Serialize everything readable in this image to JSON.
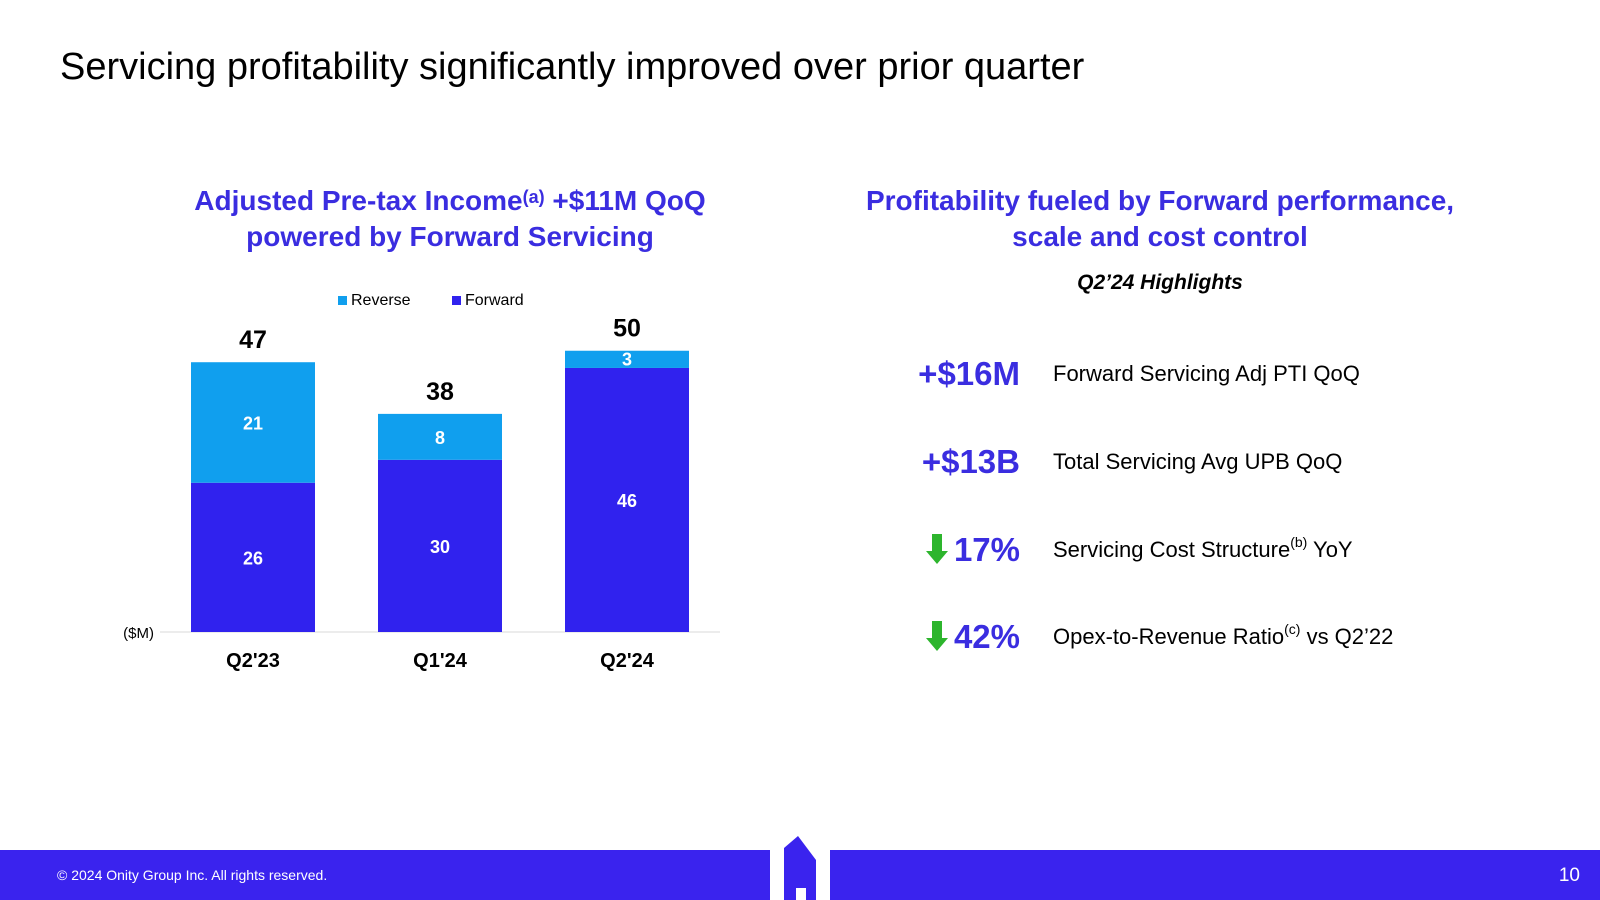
{
  "slide": {
    "title": "Servicing profitability significantly improved over prior quarter",
    "page_number": "10",
    "copyright": "© 2024 Onity Group Inc. All rights reserved."
  },
  "left_panel": {
    "title_line1_pre": "Adjusted Pre-tax Income",
    "title_sup": "(a)",
    "title_line1_post": " +$11M QoQ",
    "title_line2": "powered by Forward Servicing"
  },
  "right_panel": {
    "title_line1": "Profitability fueled by Forward performance,",
    "title_line2": "scale and cost control",
    "highlights_label": "Q2’24 Highlights",
    "metrics": [
      {
        "value": "+$16M",
        "desc": "Forward Servicing Adj PTI QoQ",
        "sup": "",
        "desc_post": "",
        "arrow": false
      },
      {
        "value": "+$13B",
        "desc": "Total Servicing Avg UPB QoQ",
        "sup": "",
        "desc_post": "",
        "arrow": false
      },
      {
        "value": "17%",
        "desc": "Servicing Cost Structure",
        "sup": "(b)",
        "desc_post": " YoY",
        "arrow": true
      },
      {
        "value": "42%",
        "desc": "Opex-to-Revenue Ratio",
        "sup": "(c)",
        "desc_post": " vs Q2’22",
        "arrow": true
      }
    ]
  },
  "colors": {
    "accent": "#3a2de0",
    "forward": "#3022ee",
    "reverse": "#109fee",
    "footer": "#3a23ee",
    "arrow": "#2db52d"
  },
  "chart_data": {
    "type": "bar",
    "stacked": true,
    "categories": [
      "Q2'23",
      "Q1'24",
      "Q2'24"
    ],
    "series": [
      {
        "name": "Forward",
        "values": [
          26,
          30,
          46
        ],
        "color": "#3022ee"
      },
      {
        "name": "Reverse",
        "values": [
          21,
          8,
          3
        ],
        "color": "#109fee"
      }
    ],
    "totals": [
      47,
      38,
      50
    ],
    "legend": [
      "Reverse",
      "Forward"
    ],
    "legend_position": "top-center",
    "unit_label": "($M)",
    "title": "",
    "xlabel": "",
    "ylabel": "",
    "ylim": [
      0,
      50
    ],
    "grid": false
  }
}
